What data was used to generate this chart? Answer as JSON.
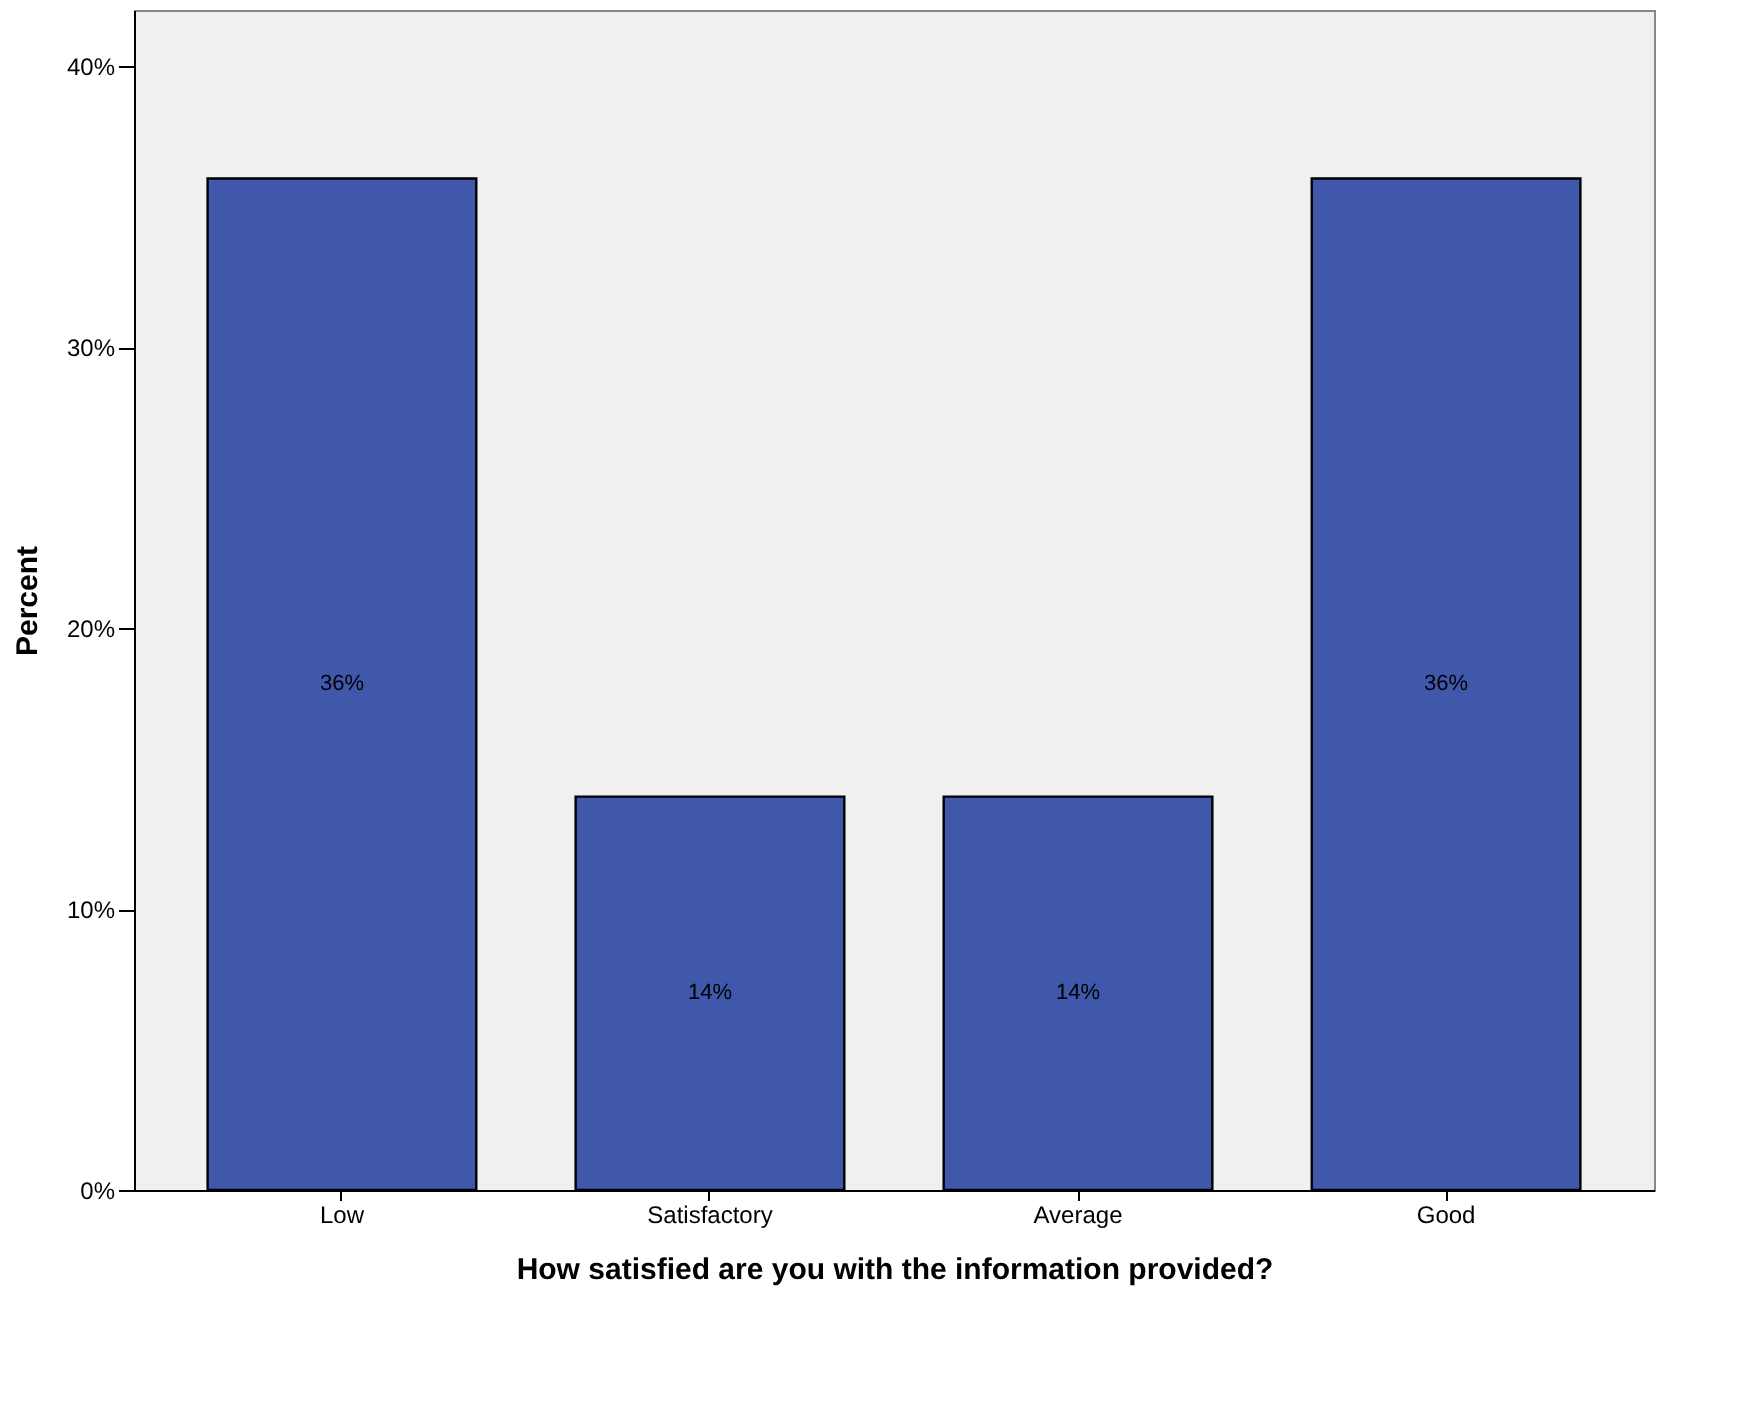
{
  "chart_data": {
    "type": "bar",
    "xlabel": "How satisfied are you with the information provided?",
    "ylabel": "Percent",
    "categories": [
      "Low",
      "Satisfactory",
      "Average",
      "Good"
    ],
    "values": [
      36,
      14,
      14,
      36
    ],
    "value_labels": [
      "36%",
      "14%",
      "14%",
      "36%"
    ],
    "color": "#3f58ab",
    "ylim": [
      0,
      42
    ],
    "yticks": [
      {
        "value": 0,
        "label": "0%"
      },
      {
        "value": 10,
        "label": "10%"
      },
      {
        "value": 20,
        "label": "20%"
      },
      {
        "value": 30,
        "label": "30%"
      },
      {
        "value": 40,
        "label": "40%"
      }
    ],
    "grid": false
  }
}
